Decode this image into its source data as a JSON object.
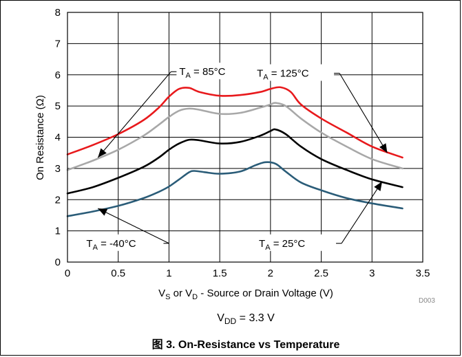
{
  "chart_data": {
    "type": "line",
    "xlabel": {
      "parts": [
        "V",
        "S",
        " or V",
        "D",
        " - Source or Drain Voltage (V)"
      ]
    },
    "ylabel": "On Resistance (Ω)",
    "code": "D003",
    "condition": {
      "parts": [
        "V",
        "DD",
        " = 3.3 V"
      ]
    },
    "caption": "图 3. On-Resistance vs Temperature",
    "xlim": [
      0,
      3.5
    ],
    "ylim": [
      0,
      8
    ],
    "xticks": [
      0,
      0.5,
      1,
      1.5,
      2,
      2.5,
      3,
      3.5
    ],
    "xtick_labels": [
      "0",
      "0.5",
      "1",
      "1.5",
      "2",
      "2.5",
      "3",
      "3.5"
    ],
    "yticks": [
      0,
      1,
      2,
      3,
      4,
      5,
      6,
      7,
      8
    ],
    "ytick_labels": [
      "0",
      "1",
      "2",
      "3",
      "4",
      "5",
      "6",
      "7",
      "8"
    ],
    "grid": true,
    "series": [
      {
        "label": {
          "parts": [
            "T",
            "A",
            " = 125°C"
          ]
        },
        "color": "#e8191c",
        "points": [
          [
            0,
            3.45
          ],
          [
            0.25,
            3.75
          ],
          [
            0.5,
            4.1
          ],
          [
            0.75,
            4.55
          ],
          [
            0.9,
            4.95
          ],
          [
            1.0,
            5.3
          ],
          [
            1.1,
            5.55
          ],
          [
            1.2,
            5.58
          ],
          [
            1.3,
            5.45
          ],
          [
            1.5,
            5.33
          ],
          [
            1.7,
            5.35
          ],
          [
            1.9,
            5.45
          ],
          [
            2.0,
            5.55
          ],
          [
            2.1,
            5.6
          ],
          [
            2.2,
            5.45
          ],
          [
            2.3,
            5.05
          ],
          [
            2.5,
            4.6
          ],
          [
            2.75,
            4.15
          ],
          [
            3.0,
            3.7
          ],
          [
            3.3,
            3.35
          ]
        ]
      },
      {
        "label": {
          "parts": [
            "T",
            "A",
            " = 85°C"
          ]
        },
        "color": "#a8a8a8",
        "points": [
          [
            0,
            2.95
          ],
          [
            0.25,
            3.25
          ],
          [
            0.5,
            3.6
          ],
          [
            0.75,
            4.05
          ],
          [
            0.9,
            4.4
          ],
          [
            1.0,
            4.65
          ],
          [
            1.1,
            4.85
          ],
          [
            1.2,
            4.92
          ],
          [
            1.3,
            4.88
          ],
          [
            1.5,
            4.75
          ],
          [
            1.7,
            4.78
          ],
          [
            1.9,
            4.95
          ],
          [
            2.0,
            5.05
          ],
          [
            2.05,
            5.1
          ],
          [
            2.15,
            5.0
          ],
          [
            2.3,
            4.6
          ],
          [
            2.5,
            4.15
          ],
          [
            2.75,
            3.7
          ],
          [
            3.0,
            3.3
          ],
          [
            3.3,
            3.0
          ]
        ]
      },
      {
        "label": {
          "parts": [
            "T",
            "A",
            " = 25°C"
          ]
        },
        "color": "#000000",
        "points": [
          [
            0,
            2.2
          ],
          [
            0.25,
            2.4
          ],
          [
            0.5,
            2.7
          ],
          [
            0.75,
            3.05
          ],
          [
            0.9,
            3.35
          ],
          [
            1.0,
            3.6
          ],
          [
            1.1,
            3.8
          ],
          [
            1.2,
            3.92
          ],
          [
            1.3,
            3.9
          ],
          [
            1.5,
            3.8
          ],
          [
            1.7,
            3.85
          ],
          [
            1.9,
            4.05
          ],
          [
            2.0,
            4.2
          ],
          [
            2.05,
            4.25
          ],
          [
            2.15,
            4.1
          ],
          [
            2.3,
            3.7
          ],
          [
            2.5,
            3.3
          ],
          [
            2.75,
            2.95
          ],
          [
            3.0,
            2.65
          ],
          [
            3.3,
            2.4
          ]
        ]
      },
      {
        "label": {
          "parts": [
            "T",
            "A",
            " = -40°C"
          ]
        },
        "color": "#2a5c78",
        "points": [
          [
            0,
            1.47
          ],
          [
            0.25,
            1.62
          ],
          [
            0.5,
            1.8
          ],
          [
            0.75,
            2.05
          ],
          [
            0.9,
            2.25
          ],
          [
            1.0,
            2.42
          ],
          [
            1.1,
            2.65
          ],
          [
            1.2,
            2.88
          ],
          [
            1.25,
            2.92
          ],
          [
            1.35,
            2.88
          ],
          [
            1.5,
            2.83
          ],
          [
            1.7,
            2.9
          ],
          [
            1.85,
            3.1
          ],
          [
            1.95,
            3.2
          ],
          [
            2.05,
            3.15
          ],
          [
            2.15,
            2.9
          ],
          [
            2.3,
            2.55
          ],
          [
            2.5,
            2.3
          ],
          [
            2.75,
            2.05
          ],
          [
            3.0,
            1.88
          ],
          [
            3.3,
            1.72
          ]
        ]
      }
    ],
    "annotations": [
      {
        "series": 1,
        "box": [
          2.0,
          6.1
        ],
        "tip": [
          0.3,
          3.35
        ],
        "corner": [
          1.02,
          6.1
        ]
      },
      {
        "series": 0,
        "box": [
          2.6,
          6.05
        ],
        "tip": [
          3.15,
          3.5
        ],
        "corner": [
          2.68,
          6.05
        ]
      },
      {
        "series": 3,
        "box": [
          0.96,
          0.6
        ],
        "tip": [
          0.3,
          1.72
        ],
        "corner": [
          1.0,
          0.6
        ]
      },
      {
        "series": 2,
        "box": [
          2.58,
          0.6
        ],
        "tip": [
          3.1,
          2.58
        ],
        "corner": [
          2.7,
          0.6
        ]
      }
    ]
  }
}
